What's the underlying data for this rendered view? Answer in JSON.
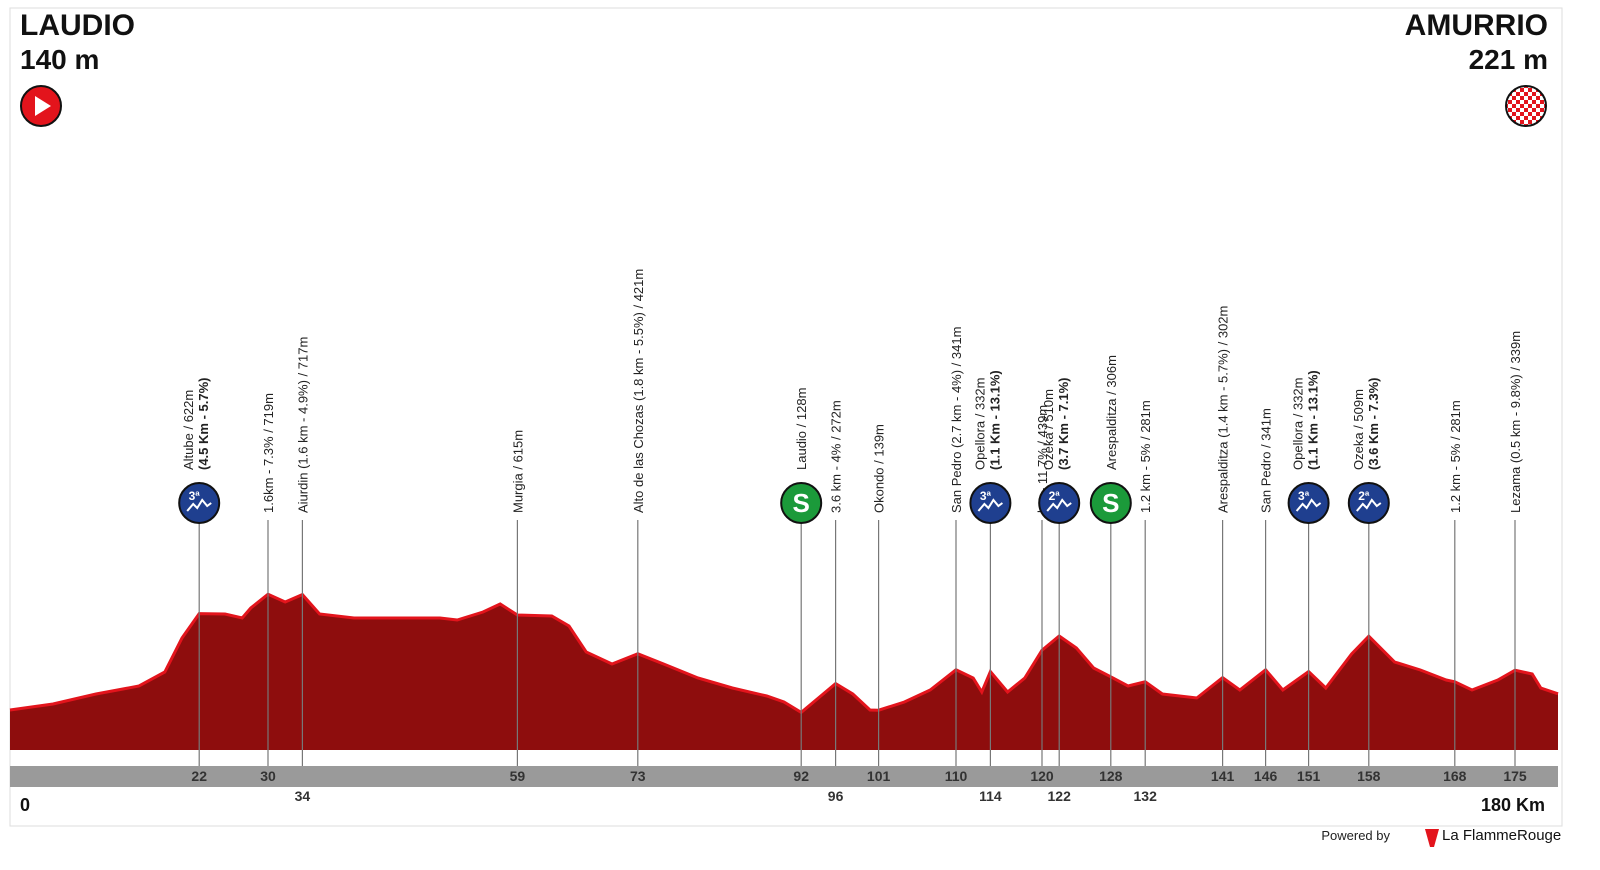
{
  "start": {
    "name": "LAUDIO",
    "altitude": "140 m"
  },
  "finish": {
    "name": "AMURRIO",
    "altitude": "221 m"
  },
  "chart_data": {
    "type": "area",
    "color": "#8e0d0d",
    "edge_color": "#e3141c",
    "xlim": [
      0,
      180
    ],
    "ylim": [
      -60,
      1000
    ],
    "xticks": [
      0,
      {
        "value": 180,
        "label": "180 Km"
      }
    ],
    "x": [
      0,
      5,
      10,
      15,
      18,
      20,
      22,
      25,
      27,
      28,
      30,
      32,
      34,
      36,
      40,
      45,
      50,
      52,
      55,
      57,
      59,
      63,
      65,
      67,
      70,
      73,
      76,
      80,
      84,
      88,
      90,
      92,
      94,
      96,
      98,
      100,
      101,
      104,
      107,
      110,
      112,
      113,
      114,
      116,
      118,
      120,
      122,
      124,
      126,
      128,
      130,
      132,
      134,
      138,
      141,
      143,
      146,
      148,
      151,
      153,
      156,
      158,
      161,
      164,
      167,
      168,
      170,
      173,
      175,
      177,
      178,
      180
    ],
    "values": [
      140,
      170,
      220,
      260,
      330,
      500,
      622,
      620,
      600,
      650,
      719,
      680,
      717,
      620,
      600,
      600,
      600,
      590,
      630,
      670,
      615,
      610,
      560,
      430,
      370,
      421,
      370,
      300,
      250,
      210,
      180,
      128,
      200,
      272,
      220,
      140,
      139,
      180,
      240,
      341,
      300,
      230,
      332,
      230,
      300,
      439,
      510,
      450,
      350,
      306,
      260,
      281,
      220,
      200,
      302,
      240,
      341,
      240,
      332,
      250,
      420,
      509,
      380,
      340,
      290,
      281,
      240,
      290,
      339,
      320,
      250,
      221
    ],
    "points": [
      {
        "km": 22,
        "label": "Altube / 622m",
        "detail": "(4.5 Km - 5.7%)",
        "icon": "3ª"
      },
      {
        "km": 30,
        "label": "1.6km - 7.3% / 719m"
      },
      {
        "km": 34,
        "label": "Aiurdin (1.6 km - 4.9%) / 717m"
      },
      {
        "km": 59,
        "label": "Murgia / 615m"
      },
      {
        "km": 73,
        "label": "Alto de las Chozas (1.8 km - 5.5%) / 421m"
      },
      {
        "km": 92,
        "label": "Laudio / 128m",
        "icon": "S"
      },
      {
        "km": 96,
        "label": "3.6 km - 4% / 272m"
      },
      {
        "km": 101,
        "label": "Okondo / 139m"
      },
      {
        "km": 110,
        "label": "San Pedro (2.7 km - 4%) / 341m"
      },
      {
        "km": 114,
        "label": "Opellora / 332m",
        "detail": "(1.1 Km - 13.1%)",
        "icon": "3ª"
      },
      {
        "km": 120,
        "label": "km - 11.7% / 439m"
      },
      {
        "km": 122,
        "label": "Ozeka / 510m",
        "detail": "(3.7 Km - 7.1%)",
        "icon": "2ª"
      },
      {
        "km": 128,
        "label": "Arespalditza / 306m",
        "icon": "S"
      },
      {
        "km": 132,
        "label": "1.2 km - 5% / 281m"
      },
      {
        "km": 141,
        "label": "Arespalditza (1.4 km - 5.7%) / 302m"
      },
      {
        "km": 146,
        "label": "San Pedro / 341m"
      },
      {
        "km": 151,
        "label": "Opellora / 332m",
        "detail": "(1.1 Km - 13.1%)",
        "icon": "3ª"
      },
      {
        "km": 158,
        "label": "Ozeka / 509m",
        "detail": "(3.6 Km - 7.3%)",
        "icon": "2ª"
      },
      {
        "km": 168,
        "label": "1.2 km - 5% / 281m"
      },
      {
        "km": 175,
        "label": "Lezama (0.5 km - 9.8%) / 339m"
      }
    ]
  },
  "footer": {
    "powered": "Powered by",
    "brand": "La FlammeRouge"
  }
}
